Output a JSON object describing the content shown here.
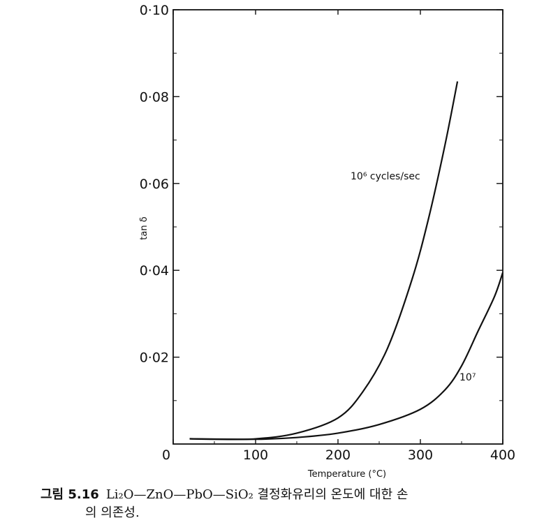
{
  "chart_data": {
    "type": "line",
    "xlabel": "Temperature (°C)",
    "ylabel": "tan δ",
    "xlim": [
      0,
      400
    ],
    "ylim": [
      0,
      0.1
    ],
    "x_ticks": [
      "0",
      "100",
      "200",
      "300",
      "400"
    ],
    "y_ticks": [
      "0·02",
      "0·04",
      "0·06",
      "0·08",
      "0·10"
    ],
    "grid": false,
    "series": [
      {
        "name": "10⁶ cycles/sec",
        "x": [
          20,
          50,
          100,
          150,
          200,
          230,
          260,
          290,
          310,
          330,
          345
        ],
        "y": [
          0.0012,
          0.0011,
          0.0012,
          0.0025,
          0.006,
          0.012,
          0.022,
          0.038,
          0.052,
          0.069,
          0.0835
        ]
      },
      {
        "name": "10⁷",
        "x": [
          20,
          100,
          150,
          200,
          250,
          300,
          330,
          350,
          370,
          390,
          400
        ],
        "y": [
          0.0012,
          0.0011,
          0.0015,
          0.0025,
          0.0045,
          0.008,
          0.0125,
          0.018,
          0.026,
          0.034,
          0.0395
        ]
      }
    ]
  },
  "caption": {
    "figure_number": "그림 5.16",
    "text_line1": "Li₂O—ZnO—PbO—SiO₂ 결정화유리의 온도에 대한 손",
    "text_line2": "의 의존성."
  }
}
